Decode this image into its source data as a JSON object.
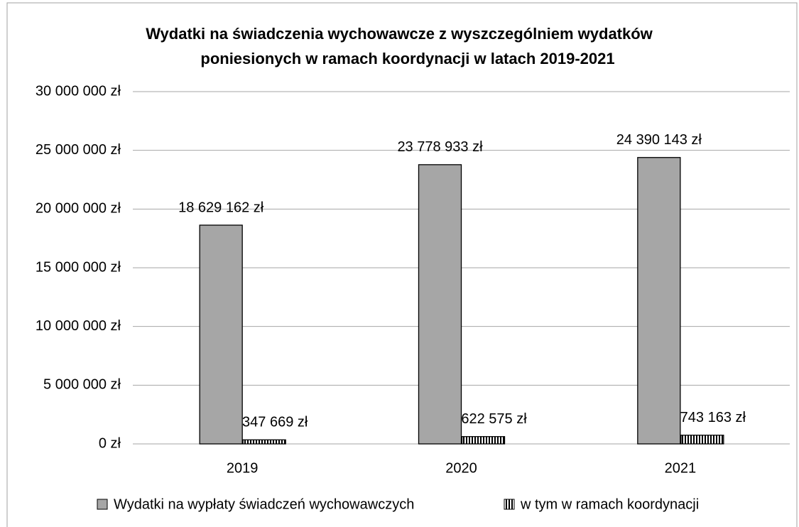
{
  "chart_data": {
    "type": "bar",
    "title": [
      "Wydatki na świadczenia wychowawcze z wyszczególniem wydatków",
      "poniesionych w ramach koordynacji w latach 2019-2021"
    ],
    "categories": [
      "2019",
      "2020",
      "2021"
    ],
    "series": [
      {
        "name": "Wydatki na wypłaty świadczeń wychowawczych",
        "color": "#a6a6a6",
        "pattern": "solid",
        "values": [
          18629162,
          23778933,
          24390143
        ],
        "value_labels": [
          "18 629 162 zł",
          "23 778 933 zł",
          "24 390 143 zł"
        ]
      },
      {
        "name": "w tym w ramach koordynacji",
        "color": "#000000",
        "pattern": "vertical-stripes",
        "values": [
          347669,
          622575,
          743163
        ],
        "value_labels": [
          "347 669 zł",
          "622 575 zł",
          "743 163 zł"
        ]
      }
    ],
    "ylim": [
      0,
      30000000
    ],
    "yticks": [
      {
        "value": 0,
        "label": "0 zł"
      },
      {
        "value": 5000000,
        "label": "5 000 000 zł"
      },
      {
        "value": 10000000,
        "label": "10 000 000 zł"
      },
      {
        "value": 15000000,
        "label": "15 000 000 zł"
      },
      {
        "value": 20000000,
        "label": "20 000 000 zł"
      },
      {
        "value": 25000000,
        "label": "25 000 000 zł"
      },
      {
        "value": 30000000,
        "label": "30 000 000 zł"
      }
    ],
    "grid": true,
    "legend": "bottom"
  }
}
